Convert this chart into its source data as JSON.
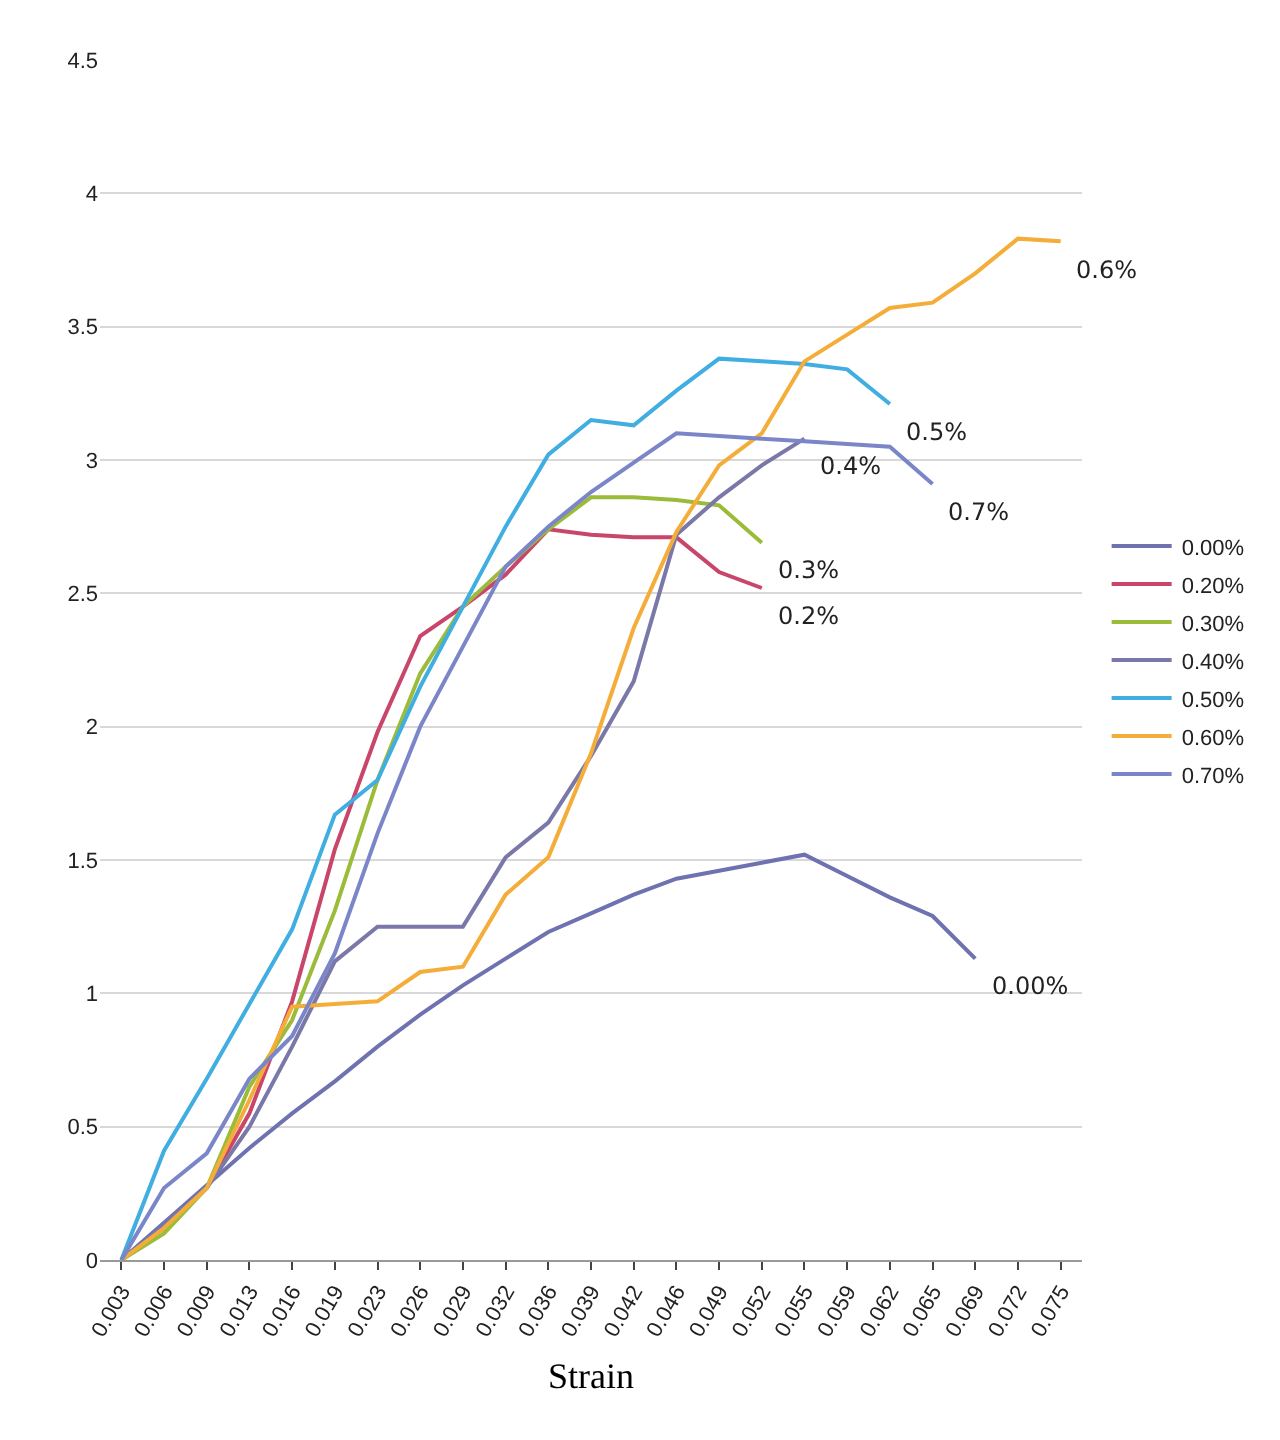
{
  "chart_data": {
    "type": "line",
    "xlabel": "Strain",
    "categories": [
      "0.003",
      "0.006",
      "0.009",
      "0.013",
      "0.016",
      "0.019",
      "0.023",
      "0.026",
      "0.029",
      "0.032",
      "0.036",
      "0.039",
      "0.042",
      "0.046",
      "0.049",
      "0.052",
      "0.055",
      "0.059",
      "0.062",
      "0.065",
      "0.069",
      "0.072",
      "0.075"
    ],
    "series": [
      {
        "name": "0.00%",
        "color": "#6e72b0",
        "values": [
          0,
          0.14,
          0.28,
          0.42,
          0.55,
          0.67,
          0.8,
          0.92,
          1.03,
          1.13,
          1.23,
          1.3,
          1.37,
          1.43,
          1.46,
          1.49,
          1.52,
          1.44,
          1.36,
          1.29,
          1.13,
          null,
          null
        ]
      },
      {
        "name": "0.20%",
        "color": "#c8466a",
        "values": [
          0,
          0.12,
          0.27,
          0.55,
          0.97,
          1.54,
          1.98,
          2.34,
          2.45,
          2.57,
          2.74,
          2.72,
          2.71,
          2.71,
          2.58,
          2.52,
          null,
          null,
          null,
          null,
          null,
          null,
          null
        ]
      },
      {
        "name": "0.30%",
        "color": "#9bbb3a",
        "values": [
          0,
          0.1,
          0.27,
          0.65,
          0.9,
          1.31,
          1.8,
          2.2,
          2.45,
          2.6,
          2.74,
          2.86,
          2.86,
          2.85,
          2.83,
          2.69,
          null,
          null,
          null,
          null,
          null,
          null,
          null
        ]
      },
      {
        "name": "0.40%",
        "color": "#7a78a8",
        "values": [
          0,
          0.13,
          0.27,
          0.5,
          0.8,
          1.12,
          1.25,
          1.25,
          1.25,
          1.51,
          1.64,
          1.89,
          2.17,
          2.72,
          2.86,
          2.98,
          3.08,
          null,
          null,
          null,
          null,
          null,
          null
        ]
      },
      {
        "name": "0.50%",
        "color": "#40aee0",
        "values": [
          0,
          0.41,
          0.68,
          0.96,
          1.24,
          1.67,
          1.8,
          2.15,
          2.45,
          2.75,
          3.02,
          3.15,
          3.13,
          3.26,
          3.38,
          3.37,
          3.36,
          3.34,
          3.21,
          null,
          null,
          null,
          null
        ]
      },
      {
        "name": "0.60%",
        "color": "#f5ad3a",
        "values": [
          0,
          0.12,
          0.27,
          0.6,
          0.95,
          0.96,
          0.97,
          1.08,
          1.1,
          1.37,
          1.51,
          1.9,
          2.37,
          2.73,
          2.98,
          3.1,
          3.37,
          3.47,
          3.57,
          3.59,
          3.7,
          3.83,
          3.82
        ]
      },
      {
        "name": "0.70%",
        "color": "#7a86c8",
        "values": [
          0,
          0.27,
          0.4,
          0.68,
          0.84,
          1.15,
          1.6,
          2.0,
          2.3,
          2.6,
          2.75,
          2.88,
          2.99,
          3.1,
          3.09,
          3.08,
          3.07,
          3.06,
          3.05,
          2.91,
          null,
          null,
          null
        ]
      }
    ],
    "ylim": [
      0,
      4.5
    ],
    "yticks": [
      0,
      0.5,
      1,
      1.5,
      2,
      2.5,
      3,
      3.5,
      4,
      4.5
    ],
    "grid": "y",
    "legend": "right",
    "marker": "none",
    "line_style": "solid",
    "annotations": [
      {
        "text": "0.6%",
        "x": "0.075",
        "y": 3.82
      },
      {
        "text": "0.5%",
        "x": "0.062",
        "y": 3.21
      },
      {
        "text": "0.4%",
        "x": "0.055",
        "y": 3.08
      },
      {
        "text": "0.7%",
        "x": "0.065",
        "y": 2.91
      },
      {
        "text": "0.3%",
        "x": "0.052",
        "y": 2.69
      },
      {
        "text": "0.2%",
        "x": "0.052",
        "y": 2.52
      },
      {
        "text": "0.00%",
        "x": "0.069",
        "y": 1.13
      }
    ]
  }
}
